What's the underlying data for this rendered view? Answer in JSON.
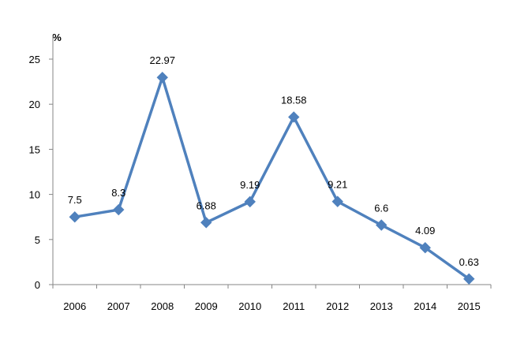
{
  "chart_data": {
    "type": "line",
    "title": "",
    "xlabel": "",
    "ylabel": "%",
    "categories": [
      "2006",
      "2007",
      "2008",
      "2009",
      "2010",
      "2011",
      "2012",
      "2013",
      "2014",
      "2015"
    ],
    "series": [
      {
        "values": [
          7.5,
          8.3,
          22.97,
          6.88,
          9.19,
          18.58,
          9.21,
          6.6,
          4.09,
          0.63
        ],
        "data_labels": [
          "7.5",
          "8.3",
          "22.97",
          "6.88",
          "9.19",
          "18.58",
          "9.21",
          "6.6",
          "4.09",
          "0.63"
        ],
        "color": "#4f81bd",
        "marker": "diamond"
      }
    ],
    "ylim": [
      0,
      25
    ],
    "yticks": [
      0,
      5,
      10,
      15,
      20,
      25
    ],
    "ytick_labels": [
      "0",
      "5",
      "10",
      "15",
      "20",
      "25"
    ],
    "grid": false,
    "legend": "none",
    "axis_color": "#868686"
  }
}
